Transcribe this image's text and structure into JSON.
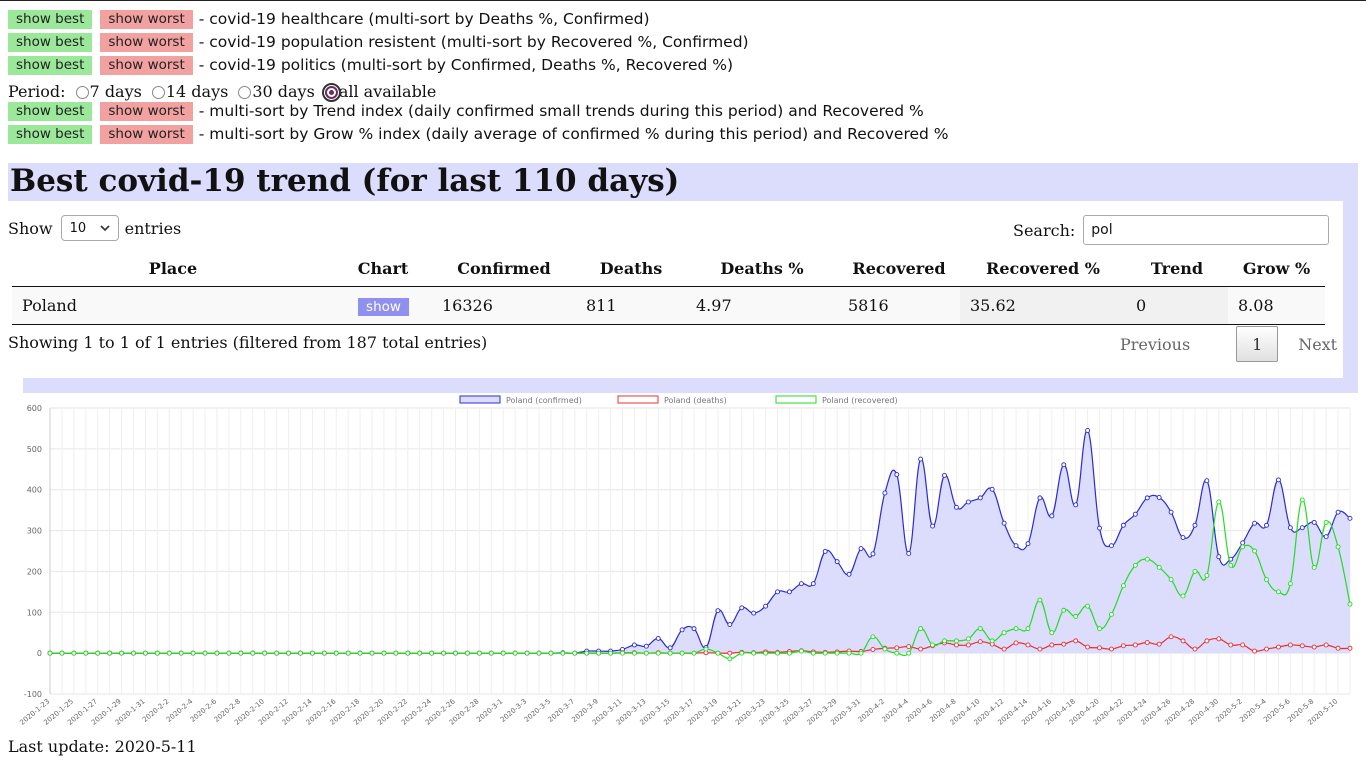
{
  "actions": [
    {
      "best": "show best",
      "worst": "show worst",
      "desc": "- covid-19 healthcare (multi-sort by Deaths %, Confirmed)"
    },
    {
      "best": "show best",
      "worst": "show worst",
      "desc": "- covid-19 population resistent (multi-sort by Recovered %, Confirmed)"
    },
    {
      "best": "show best",
      "worst": "show worst",
      "desc": "- covid-19 politics (multi-sort by Confirmed, Deaths %, Recovered %)"
    }
  ],
  "period": {
    "label": "Period:",
    "options": [
      "7 days",
      "14 days",
      "30 days",
      "all available"
    ],
    "selected": "all available"
  },
  "actions2": [
    {
      "best": "show best",
      "worst": "show worst",
      "desc": "- multi-sort by Trend index (daily confirmed small trends during this period) and Recovered %"
    },
    {
      "best": "show best",
      "worst": "show worst",
      "desc": "- multi-sort by Grow % index (daily average of confirmed % during this period) and Recovered %"
    }
  ],
  "title": "Best covid-19 trend (for last 110 days)",
  "table_controls": {
    "show_label": "Show",
    "entries_value": "10",
    "entries_label": "entries",
    "search_label": "Search:",
    "search_value": "pol"
  },
  "table": {
    "headers": [
      "Place",
      "Chart",
      "Confirmed",
      "Deaths",
      "Deaths %",
      "Recovered",
      "Recovered %",
      "Trend",
      "Grow %"
    ],
    "rows": [
      {
        "place": "Poland",
        "chart": "show",
        "confirmed": "16326",
        "deaths": "811",
        "deaths_pct": "4.97",
        "recovered": "5816",
        "recovered_pct": "35.62",
        "trend": "0",
        "grow_pct": "8.08"
      }
    ]
  },
  "info": "Showing 1 to 1 of 1 entries (filtered from 187 total entries)",
  "pager": {
    "previous": "Previous",
    "page": "1",
    "next": "Next"
  },
  "footer": "Last update: 2020-5-11",
  "colors": {
    "confirmed": "#2b2bd6",
    "deaths": "#e83030",
    "recovered": "#22dd22",
    "fill": "#dcdcfc"
  },
  "chart_data": {
    "type": "line",
    "title": "",
    "xlabel": "",
    "ylabel": "",
    "ylim": [
      -100,
      600
    ],
    "yticks": [
      "-100",
      "0",
      "100",
      "200",
      "300",
      "400",
      "500",
      "600"
    ],
    "legend_position": "top",
    "grid": true,
    "x": [
      "2020-1-23",
      "2020-1-24",
      "2020-1-25",
      "2020-1-26",
      "2020-1-27",
      "2020-1-28",
      "2020-1-29",
      "2020-1-30",
      "2020-1-31",
      "2020-2-1",
      "2020-2-2",
      "2020-2-3",
      "2020-2-4",
      "2020-2-5",
      "2020-2-6",
      "2020-2-7",
      "2020-2-8",
      "2020-2-9",
      "2020-2-10",
      "2020-2-11",
      "2020-2-12",
      "2020-2-13",
      "2020-2-14",
      "2020-2-15",
      "2020-2-16",
      "2020-2-17",
      "2020-2-18",
      "2020-2-19",
      "2020-2-20",
      "2020-2-21",
      "2020-2-22",
      "2020-2-23",
      "2020-2-24",
      "2020-2-25",
      "2020-2-26",
      "2020-2-27",
      "2020-2-28",
      "2020-2-29",
      "2020-3-1",
      "2020-3-2",
      "2020-3-3",
      "2020-3-4",
      "2020-3-5",
      "2020-3-6",
      "2020-3-7",
      "2020-3-8",
      "2020-3-9",
      "2020-3-10",
      "2020-3-11",
      "2020-3-12",
      "2020-3-13",
      "2020-3-14",
      "2020-3-15",
      "2020-3-16",
      "2020-3-17",
      "2020-3-18",
      "2020-3-19",
      "2020-3-20",
      "2020-3-21",
      "2020-3-22",
      "2020-3-23",
      "2020-3-24",
      "2020-3-25",
      "2020-3-26",
      "2020-3-27",
      "2020-3-28",
      "2020-3-29",
      "2020-3-30",
      "2020-3-31",
      "2020-4-1",
      "2020-4-2",
      "2020-4-3",
      "2020-4-4",
      "2020-4-5",
      "2020-4-6",
      "2020-4-7",
      "2020-4-8",
      "2020-4-9",
      "2020-4-10",
      "2020-4-11",
      "2020-4-12",
      "2020-4-13",
      "2020-4-14",
      "2020-4-15",
      "2020-4-16",
      "2020-4-17",
      "2020-4-18",
      "2020-4-19",
      "2020-4-20",
      "2020-4-21",
      "2020-4-22",
      "2020-4-23",
      "2020-4-24",
      "2020-4-25",
      "2020-4-26",
      "2020-4-27",
      "2020-4-28",
      "2020-4-29",
      "2020-4-30",
      "2020-5-1",
      "2020-5-2",
      "2020-5-3",
      "2020-5-4",
      "2020-5-5",
      "2020-5-6",
      "2020-5-7",
      "2020-5-8",
      "2020-5-9",
      "2020-5-10",
      "2020-5-11"
    ],
    "series": [
      {
        "name": "Poland (confirmed)",
        "values": [
          0,
          0,
          0,
          0,
          0,
          0,
          0,
          0,
          0,
          0,
          0,
          0,
          0,
          0,
          0,
          0,
          0,
          0,
          0,
          0,
          0,
          0,
          0,
          0,
          0,
          0,
          0,
          0,
          0,
          0,
          0,
          0,
          0,
          0,
          0,
          0,
          0,
          0,
          0,
          0,
          0,
          0,
          0,
          1,
          0,
          5,
          5,
          5,
          9,
          20,
          17,
          36,
          13,
          57,
          60,
          14,
          104,
          70,
          111,
          98,
          115,
          150,
          150,
          170,
          170,
          249,
          224,
          193,
          256,
          243,
          392,
          437,
          244,
          475,
          311,
          435,
          357,
          370,
          380,
          401,
          318,
          263,
          268,
          380,
          336,
          461,
          363,
          545,
          306,
          263,
          313,
          340,
          380,
          381,
          345,
          283,
          313,
          422,
          236,
          230,
          270,
          318,
          313,
          424,
          307,
          307,
          320,
          285,
          345,
          330
        ]
      },
      {
        "name": "Poland (deaths)",
        "values": [
          0,
          0,
          0,
          0,
          0,
          0,
          0,
          0,
          0,
          0,
          0,
          0,
          0,
          0,
          0,
          0,
          0,
          0,
          0,
          0,
          0,
          0,
          0,
          0,
          0,
          0,
          0,
          0,
          0,
          0,
          0,
          0,
          0,
          0,
          0,
          0,
          0,
          0,
          0,
          0,
          0,
          0,
          0,
          0,
          0,
          0,
          0,
          0,
          1,
          1,
          0,
          1,
          0,
          0,
          0,
          1,
          0,
          0,
          2,
          1,
          3,
          2,
          4,
          6,
          3,
          2,
          3,
          5,
          4,
          9,
          12,
          13,
          16,
          10,
          18,
          25,
          20,
          20,
          28,
          22,
          10,
          25,
          20,
          10,
          20,
          22,
          30,
          15,
          13,
          10,
          18,
          20,
          26,
          22,
          40,
          30,
          10,
          30,
          35,
          20,
          20,
          5,
          10,
          15,
          20,
          18,
          15,
          20,
          12,
          12
        ]
      },
      {
        "name": "Poland (recovered)",
        "values": [
          0,
          0,
          0,
          0,
          0,
          0,
          0,
          0,
          0,
          0,
          0,
          0,
          0,
          0,
          0,
          0,
          0,
          0,
          0,
          0,
          0,
          0,
          0,
          0,
          0,
          0,
          0,
          0,
          0,
          0,
          0,
          0,
          0,
          0,
          0,
          0,
          0,
          0,
          0,
          0,
          0,
          0,
          0,
          0,
          0,
          0,
          0,
          0,
          0,
          0,
          0,
          0,
          0,
          0,
          0,
          10,
          0,
          -14,
          0,
          0,
          0,
          0,
          0,
          5,
          0,
          0,
          0,
          0,
          0,
          40,
          10,
          0,
          0,
          60,
          20,
          30,
          30,
          35,
          60,
          30,
          50,
          60,
          60,
          130,
          50,
          105,
          90,
          115,
          60,
          95,
          165,
          215,
          230,
          210,
          180,
          140,
          200,
          190,
          370,
          215,
          260,
          250,
          180,
          150,
          170,
          375,
          210,
          320,
          260,
          120
        ]
      }
    ]
  }
}
